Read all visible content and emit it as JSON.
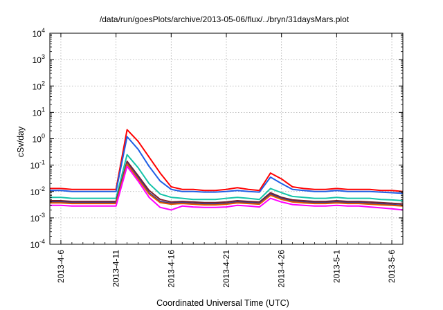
{
  "chart_data": {
    "type": "line",
    "title": "/data/run/goesPlots/archive/2013-05-06/flux/../bryn/31daysMars.plot",
    "xlabel": "Coordinated Universal Time (UTC)",
    "ylabel": "cSv/day",
    "yscale": "log",
    "ylim": [
      0.0001,
      10000
    ],
    "xlim": [
      "2013-04-05",
      "2013-05-07"
    ],
    "grid": true,
    "y_ticks": [
      {
        "value": 0.0001,
        "base": "10",
        "exp": "-4"
      },
      {
        "value": 0.001,
        "base": "10",
        "exp": "-3"
      },
      {
        "value": 0.01,
        "base": "10",
        "exp": "-2"
      },
      {
        "value": 0.1,
        "base": "10",
        "exp": "-1"
      },
      {
        "value": 1,
        "base": "10",
        "exp": "0"
      },
      {
        "value": 10,
        "base": "10",
        "exp": "1"
      },
      {
        "value": 100,
        "base": "10",
        "exp": "2"
      },
      {
        "value": 1000,
        "base": "10",
        "exp": "3"
      },
      {
        "value": 10000,
        "base": "10",
        "exp": "4"
      }
    ],
    "x_ticks": [
      {
        "value": "2013-04-06",
        "label": "2013-4-6"
      },
      {
        "value": "2013-04-11",
        "label": "2013-4-11"
      },
      {
        "value": "2013-04-16",
        "label": "2013-4-16"
      },
      {
        "value": "2013-04-21",
        "label": "2013-4-21"
      },
      {
        "value": "2013-04-26",
        "label": "2013-4-26"
      },
      {
        "value": "2013-05-01",
        "label": "2013-5-1"
      },
      {
        "value": "2013-05-06",
        "label": "2013-5-6"
      }
    ],
    "x": [
      "2013-04-05",
      "2013-04-06",
      "2013-04-07",
      "2013-04-08",
      "2013-04-09",
      "2013-04-10",
      "2013-04-11",
      "2013-04-12",
      "2013-04-13",
      "2013-04-14",
      "2013-04-15",
      "2013-04-16",
      "2013-04-17",
      "2013-04-18",
      "2013-04-19",
      "2013-04-20",
      "2013-04-21",
      "2013-04-22",
      "2013-04-23",
      "2013-04-24",
      "2013-04-25",
      "2013-04-26",
      "2013-04-27",
      "2013-04-28",
      "2013-04-29",
      "2013-04-30",
      "2013-05-01",
      "2013-05-02",
      "2013-05-03",
      "2013-05-04",
      "2013-05-05",
      "2013-05-06",
      "2013-05-07"
    ],
    "series": [
      {
        "color": "#ff0000",
        "values": [
          0.013,
          0.013,
          0.012,
          0.012,
          0.012,
          0.012,
          0.012,
          2.2,
          0.8,
          0.2,
          0.05,
          0.015,
          0.012,
          0.012,
          0.011,
          0.011,
          0.012,
          0.014,
          0.012,
          0.011,
          0.05,
          0.03,
          0.015,
          0.013,
          0.012,
          0.012,
          0.013,
          0.012,
          0.012,
          0.012,
          0.011,
          0.011,
          0.01
        ]
      },
      {
        "color": "#1f5fe6",
        "values": [
          0.011,
          0.011,
          0.01,
          0.01,
          0.01,
          0.01,
          0.01,
          1.2,
          0.4,
          0.09,
          0.025,
          0.012,
          0.01,
          0.01,
          0.0095,
          0.0095,
          0.01,
          0.011,
          0.01,
          0.0095,
          0.035,
          0.02,
          0.012,
          0.011,
          0.01,
          0.01,
          0.011,
          0.01,
          0.01,
          0.01,
          0.0095,
          0.009,
          0.0085
        ]
      },
      {
        "color": "#14c3a8",
        "values": [
          0.006,
          0.006,
          0.0055,
          0.0055,
          0.0055,
          0.0055,
          0.0055,
          0.25,
          0.08,
          0.02,
          0.008,
          0.006,
          0.0055,
          0.005,
          0.005,
          0.005,
          0.0055,
          0.006,
          0.0055,
          0.005,
          0.013,
          0.009,
          0.0065,
          0.006,
          0.0055,
          0.0055,
          0.006,
          0.0055,
          0.0055,
          0.0055,
          0.005,
          0.0048,
          0.0045
        ]
      },
      {
        "color": "#7a1f2b",
        "values": [
          0.0045,
          0.0045,
          0.0042,
          0.0042,
          0.0042,
          0.0042,
          0.0042,
          0.14,
          0.04,
          0.011,
          0.005,
          0.004,
          0.0042,
          0.004,
          0.0038,
          0.0038,
          0.004,
          0.0045,
          0.0042,
          0.004,
          0.009,
          0.006,
          0.0048,
          0.0045,
          0.0042,
          0.0042,
          0.0045,
          0.0042,
          0.0042,
          0.004,
          0.0038,
          0.0036,
          0.0034
        ]
      },
      {
        "color": "#3a3a8a",
        "values": [
          0.004,
          0.004,
          0.0038,
          0.0038,
          0.0038,
          0.0038,
          0.0038,
          0.12,
          0.035,
          0.009,
          0.0042,
          0.0036,
          0.0038,
          0.0036,
          0.0034,
          0.0034,
          0.0036,
          0.004,
          0.0038,
          0.0036,
          0.008,
          0.0055,
          0.0043,
          0.004,
          0.0038,
          0.0038,
          0.004,
          0.0038,
          0.0038,
          0.0036,
          0.0034,
          0.0032,
          0.003
        ]
      },
      {
        "color": "#e05a00",
        "values": [
          0.0037,
          0.0037,
          0.0035,
          0.0035,
          0.0035,
          0.0035,
          0.0035,
          0.11,
          0.03,
          0.008,
          0.0038,
          0.0033,
          0.0035,
          0.0033,
          0.0031,
          0.0031,
          0.0033,
          0.0037,
          0.0035,
          0.0033,
          0.0072,
          0.005,
          0.004,
          0.0037,
          0.0035,
          0.0035,
          0.0037,
          0.0035,
          0.0035,
          0.0033,
          0.0031,
          0.003,
          0.0028
        ]
      },
      {
        "color": "#ff00ff",
        "values": [
          0.003,
          0.003,
          0.0028,
          0.0028,
          0.0028,
          0.0028,
          0.0028,
          0.09,
          0.025,
          0.006,
          0.0025,
          0.002,
          0.0028,
          0.0026,
          0.0025,
          0.0025,
          0.0026,
          0.003,
          0.0028,
          0.0026,
          0.0055,
          0.004,
          0.0032,
          0.003,
          0.0028,
          0.0028,
          0.003,
          0.0028,
          0.0028,
          0.0026,
          0.0024,
          0.0022,
          0.002
        ]
      }
    ]
  }
}
